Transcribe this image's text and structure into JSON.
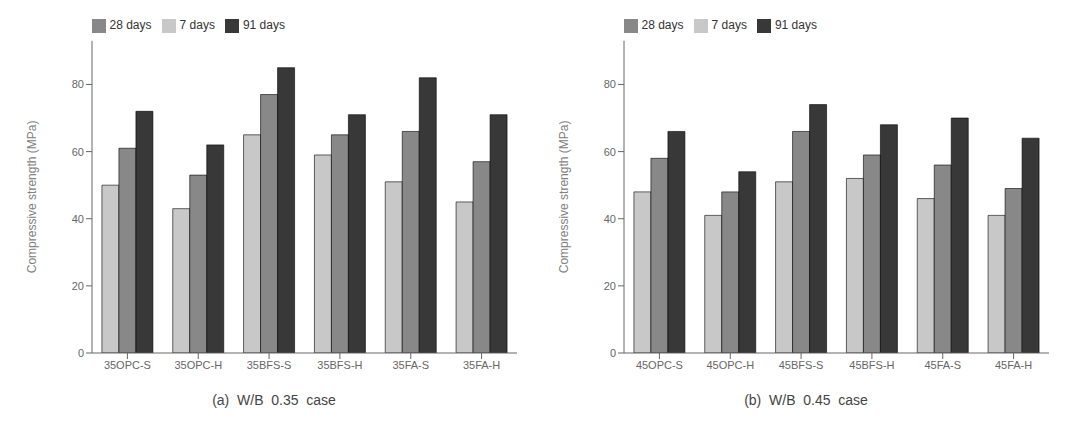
{
  "chart_data": [
    {
      "type": "bar",
      "title": "(a)  W/B  0.35  case",
      "categories": [
        "35OPC-S",
        "35OPC-H",
        "35BFS-S",
        "35BFS-H",
        "35FA-S",
        "35FA-H"
      ],
      "series": [
        {
          "name": "7 days",
          "color": "#c8c8c8",
          "values": [
            50,
            43,
            65,
            59,
            51,
            45
          ]
        },
        {
          "name": "28 days",
          "color": "#888888",
          "values": [
            61,
            53,
            77,
            65,
            66,
            57
          ]
        },
        {
          "name": "91 days",
          "color": "#383838",
          "values": [
            72,
            62,
            85,
            71,
            82,
            71
          ]
        }
      ],
      "ylabel": "Compressive strength (MPa)",
      "ylim": [
        0,
        93
      ],
      "yticks": [
        0,
        20,
        40,
        60,
        80
      ],
      "grid": false,
      "legend": "upper left"
    },
    {
      "type": "bar",
      "title": "(b)  W/B  0.45  case",
      "categories": [
        "45OPC-S",
        "45OPC-H",
        "45BFS-S",
        "45BFS-H",
        "45FA-S",
        "45FA-H"
      ],
      "series": [
        {
          "name": "7 days",
          "color": "#c8c8c8",
          "values": [
            48,
            41,
            51,
            52,
            46,
            41
          ]
        },
        {
          "name": "28 days",
          "color": "#888888",
          "values": [
            58,
            48,
            66,
            59,
            56,
            49
          ]
        },
        {
          "name": "91 days",
          "color": "#383838",
          "values": [
            66,
            54,
            74,
            68,
            70,
            64
          ]
        }
      ],
      "ylabel": "Compressive strength (MPa)",
      "ylim": [
        0,
        93
      ],
      "yticks": [
        0,
        20,
        40,
        60,
        80
      ],
      "grid": false,
      "legend": "upper left"
    }
  ]
}
